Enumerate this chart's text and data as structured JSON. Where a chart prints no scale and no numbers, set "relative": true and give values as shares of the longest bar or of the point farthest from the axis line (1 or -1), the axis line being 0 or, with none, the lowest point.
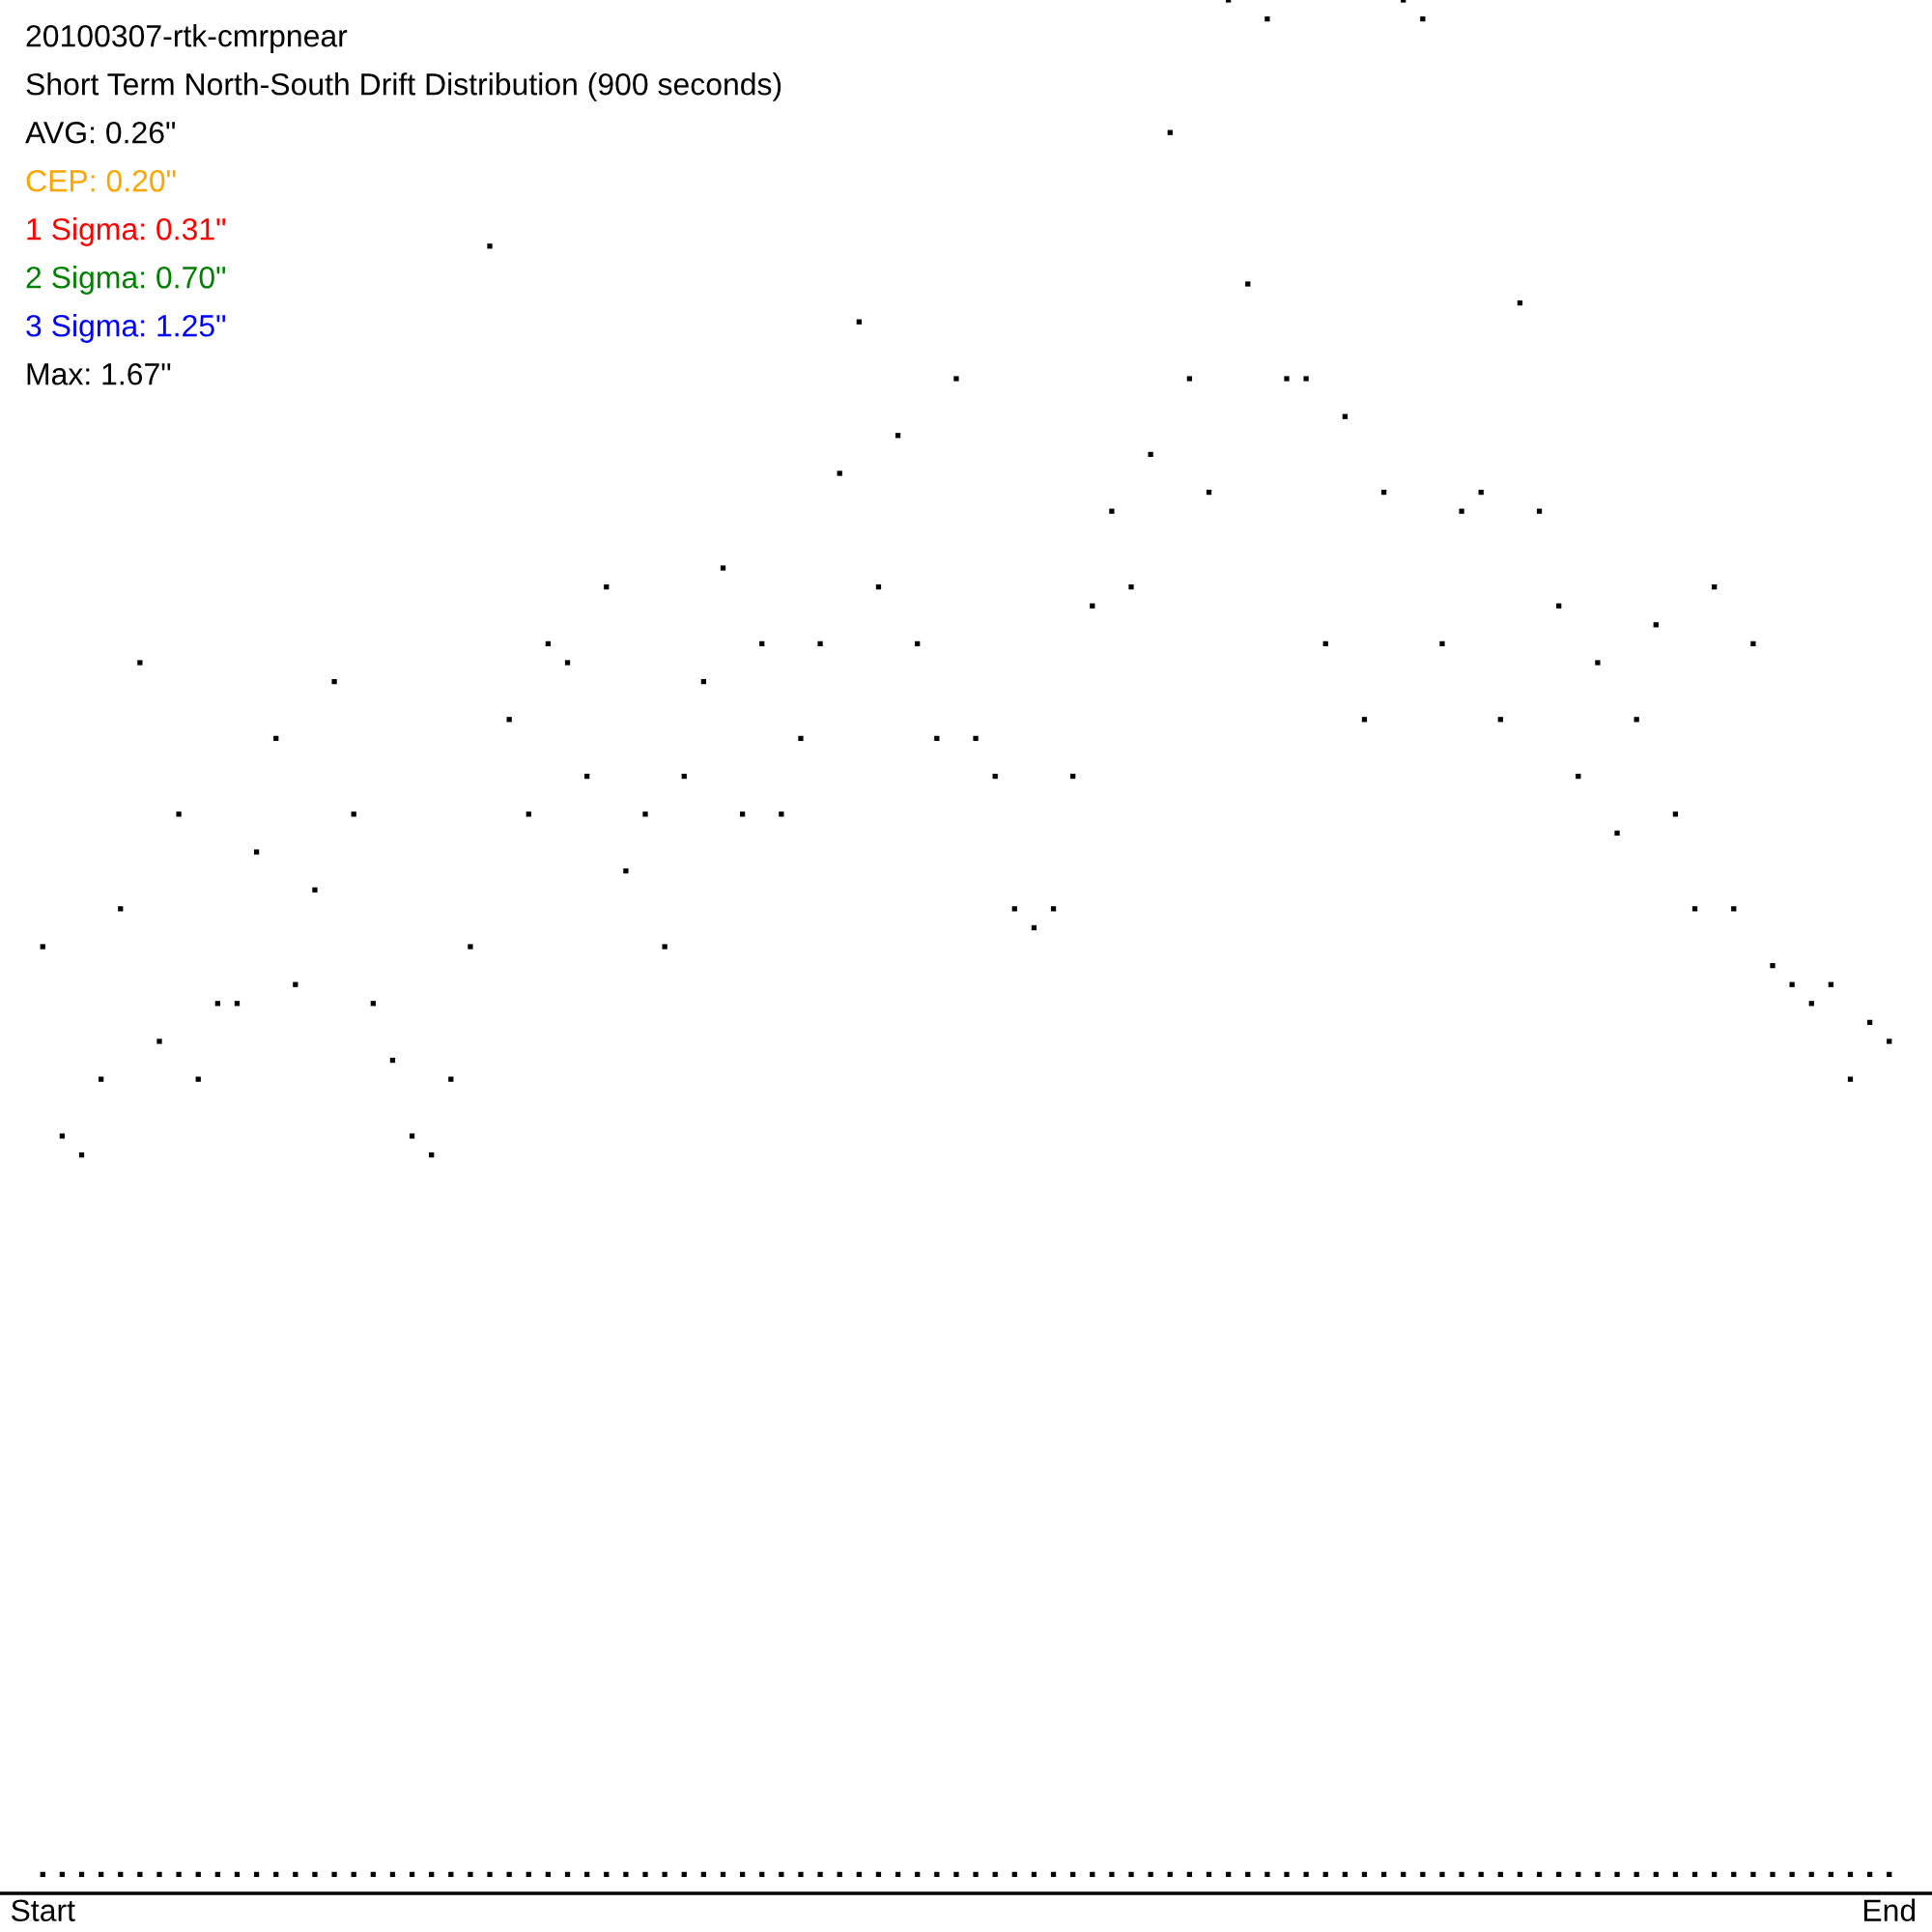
{
  "chart_data": {
    "type": "scatter",
    "title": "20100307-rtk-cmrpnear",
    "subtitle": "Short Term North-South Drift Distribution (900 seconds)",
    "annotations": [
      "AVG: 0.26\"",
      "CEP: 0.20\"",
      "1 Sigma: 0.31\"",
      "2 Sigma: 0.70\"",
      "3 Sigma: 1.25\"",
      "Max: 1.67\""
    ],
    "relative": true,
    "marker": "square",
    "tick_labels": "x",
    "categories": [
      "Start",
      null,
      null,
      null,
      null,
      null,
      null,
      null,
      null,
      null,
      null,
      null,
      null,
      null,
      null,
      null,
      null,
      null,
      null,
      null,
      null,
      null,
      null,
      null,
      null,
      null,
      null,
      null,
      null,
      null,
      null,
      null,
      null,
      null,
      null,
      null,
      null,
      null,
      null,
      null,
      null,
      null,
      null,
      null,
      null,
      null,
      null,
      null,
      null,
      null,
      null,
      null,
      null,
      null,
      null,
      null,
      null,
      null,
      null,
      null,
      null,
      null,
      null,
      null,
      null,
      null,
      null,
      null,
      null,
      null,
      null,
      null,
      null,
      null,
      null,
      null,
      null,
      null,
      null,
      null,
      null,
      null,
      null,
      null,
      null,
      null,
      null,
      null,
      null,
      null,
      null,
      null,
      null,
      null,
      null,
      "End"
    ],
    "series": [
      {
        "color": "#000000",
        "values": [
          0.5,
          0.4,
          0.39,
          0.43,
          0.52,
          0.65,
          0.45,
          0.57,
          0.43,
          0.47,
          0.47,
          0.55,
          0.61,
          0.48,
          0.53,
          0.64,
          0.57,
          0.47,
          0.44,
          0.4,
          0.39,
          0.43,
          0.5,
          0.87,
          0.62,
          0.57,
          0.66,
          0.65,
          0.59,
          0.69,
          0.54,
          0.57,
          0.5,
          0.59,
          0.64,
          0.7,
          0.57,
          0.66,
          0.57,
          0.61,
          0.66,
          0.75,
          0.83,
          0.69,
          0.77,
          0.66,
          0.61,
          0.8,
          0.61,
          0.59,
          0.52,
          0.51,
          0.52,
          0.59,
          0.68,
          0.73,
          0.69,
          0.76,
          0.93,
          0.8,
          0.74,
          1.0,
          0.85,
          0.99,
          0.8,
          0.8,
          0.66,
          0.78,
          0.62,
          0.74,
          1.0,
          0.99,
          0.66,
          0.73,
          0.74,
          0.62,
          0.84,
          0.73,
          0.68,
          0.59,
          0.65,
          0.56,
          0.62,
          0.67,
          0.57,
          0.52,
          0.69,
          0.52,
          0.66,
          0.49,
          0.48,
          0.47,
          0.48,
          0.43,
          0.46,
          0.45
        ]
      },
      {
        "color": "#000000",
        "values": [
          0.01,
          0.01,
          0.01,
          0.01,
          0.01,
          0.01,
          0.01,
          0.01,
          0.01,
          0.01,
          0.01,
          0.01,
          0.01,
          0.01,
          0.01,
          0.01,
          0.01,
          0.01,
          0.01,
          0.01,
          0.01,
          0.01,
          0.01,
          0.01,
          0.01,
          0.01,
          0.01,
          0.01,
          0.01,
          0.01,
          0.01,
          0.01,
          0.01,
          0.01,
          0.01,
          0.01,
          0.01,
          0.01,
          0.01,
          0.01,
          0.01,
          0.01,
          0.01,
          0.01,
          0.01,
          0.01,
          0.01,
          0.01,
          0.01,
          0.01,
          0.01,
          0.01,
          0.01,
          0.01,
          0.01,
          0.01,
          0.01,
          0.01,
          0.01,
          0.01,
          0.01,
          0.01,
          0.01,
          0.01,
          0.01,
          0.01,
          0.01,
          0.01,
          0.01,
          0.01,
          0.01,
          0.01,
          0.01,
          0.01,
          0.01,
          0.01,
          0.01,
          0.01,
          0.01,
          0.01,
          0.01,
          0.01,
          0.01,
          0.01,
          0.01,
          0.01,
          0.01,
          0.01,
          0.01,
          0.01,
          0.01,
          0.01,
          0.01,
          0.01,
          0.01,
          0.01
        ]
      }
    ]
  }
}
